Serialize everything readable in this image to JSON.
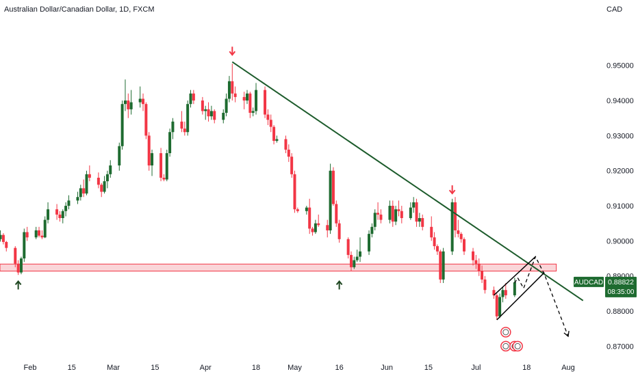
{
  "header": {
    "title": "Australian Dollar/Canadian Dollar, 1D, FXCM",
    "currency": "CAD"
  },
  "price_badge": {
    "symbol": "AUDCAD",
    "price": "0.88822",
    "countdown": "08:35:00"
  },
  "colors": {
    "up": "#1e6b30",
    "down": "#f23645",
    "trendline": "#1c5b2b",
    "zone_fill": "#f8c7cb",
    "zone_stroke": "#f23645",
    "badge": "#1e6b30",
    "axis_text": "#131722"
  },
  "chart_data": {
    "type": "candlestick",
    "title": "Australian Dollar/Canadian Dollar, 1D, FXCM",
    "ylabel": "CAD",
    "ylim": [
      0.8654,
      0.9628
    ],
    "yticks": [
      0.87,
      0.88,
      0.89,
      0.9,
      0.91,
      0.92,
      0.93,
      0.94,
      0.95
    ],
    "ytick_labels": [
      "0.87000",
      "0.88000",
      "0.89000",
      "0.90000",
      "0.91000",
      "0.92000",
      "0.93000",
      "0.94000",
      "0.95000"
    ],
    "xticks": [
      {
        "label": "Feb",
        "date": "Feb 1"
      },
      {
        "label": "15",
        "date": "Feb 15"
      },
      {
        "label": "Mar",
        "date": "Mar 1"
      },
      {
        "label": "15",
        "date": "Mar 15"
      },
      {
        "label": "Apr",
        "date": "Apr 1"
      },
      {
        "label": "18",
        "date": "Apr 18"
      },
      {
        "label": "May",
        "date": "May 1"
      },
      {
        "label": "16",
        "date": "May 16"
      },
      {
        "label": "Jun",
        "date": "Jun 1"
      },
      {
        "label": "15",
        "date": "Jun 15"
      },
      {
        "label": "Jul",
        "date": "Jul 1"
      },
      {
        "label": "18",
        "date": "Jul 18"
      },
      {
        "label": "Aug",
        "date": "Aug 1"
      }
    ],
    "candles": [
      {
        "d": "Jan 20",
        "o": 0.9013,
        "h": 0.9035,
        "l": 0.9,
        "c": 0.901
      },
      {
        "d": "Jan 21",
        "o": 0.901,
        "h": 0.902,
        "l": 0.8995,
        "c": 0.9005
      },
      {
        "d": "Jan 22",
        "o": 0.9005,
        "h": 0.903,
        "l": 0.8998,
        "c": 0.9017
      },
      {
        "d": "Jan 23",
        "o": 0.9017,
        "h": 0.9022,
        "l": 0.899,
        "c": 0.8997
      },
      {
        "d": "Jan 24",
        "o": 0.8997,
        "h": 0.9,
        "l": 0.897,
        "c": 0.898
      },
      {
        "d": "Jan 27",
        "o": 0.898,
        "h": 0.8985,
        "l": 0.8925,
        "c": 0.8935
      },
      {
        "d": "Jan 28",
        "o": 0.8935,
        "h": 0.8945,
        "l": 0.8903,
        "c": 0.891
      },
      {
        "d": "Jan 29",
        "o": 0.891,
        "h": 0.8955,
        "l": 0.8905,
        "c": 0.895
      },
      {
        "d": "Jan 30",
        "o": 0.895,
        "h": 0.9035,
        "l": 0.894,
        "c": 0.9025
      },
      {
        "d": "Jan 31",
        "o": 0.9025,
        "h": 0.904,
        "l": 0.9,
        "c": 0.901
      },
      {
        "d": "Feb 3",
        "o": 0.901,
        "h": 0.904,
        "l": 0.9005,
        "c": 0.903
      },
      {
        "d": "Feb 4",
        "o": 0.903,
        "h": 0.904,
        "l": 0.901,
        "c": 0.9015
      },
      {
        "d": "Feb 5",
        "o": 0.9015,
        "h": 0.903,
        "l": 0.9005,
        "c": 0.901
      },
      {
        "d": "Feb 6",
        "o": 0.901,
        "h": 0.907,
        "l": 0.9008,
        "c": 0.906
      },
      {
        "d": "Feb 7",
        "o": 0.906,
        "h": 0.911,
        "l": 0.905,
        "c": 0.909
      },
      {
        "d": "Feb 10",
        "o": 0.909,
        "h": 0.9105,
        "l": 0.906,
        "c": 0.9075
      },
      {
        "d": "Feb 11",
        "o": 0.9075,
        "h": 0.9085,
        "l": 0.9055,
        "c": 0.9065
      },
      {
        "d": "Feb 12",
        "o": 0.9065,
        "h": 0.909,
        "l": 0.905,
        "c": 0.9085
      },
      {
        "d": "Feb 13",
        "o": 0.9085,
        "h": 0.911,
        "l": 0.907,
        "c": 0.91
      },
      {
        "d": "Feb 14",
        "o": 0.91,
        "h": 0.913,
        "l": 0.909,
        "c": 0.9115
      },
      {
        "d": "Feb 17",
        "o": 0.9115,
        "h": 0.914,
        "l": 0.9105,
        "c": 0.9125
      },
      {
        "d": "Feb 18",
        "o": 0.9125,
        "h": 0.916,
        "l": 0.9115,
        "c": 0.915
      },
      {
        "d": "Feb 19",
        "o": 0.915,
        "h": 0.9175,
        "l": 0.9125,
        "c": 0.9135
      },
      {
        "d": "Feb 20",
        "o": 0.9135,
        "h": 0.92,
        "l": 0.913,
        "c": 0.919
      },
      {
        "d": "Feb 21",
        "o": 0.919,
        "h": 0.9215,
        "l": 0.917,
        "c": 0.918
      },
      {
        "d": "Feb 24",
        "o": 0.918,
        "h": 0.9195,
        "l": 0.915,
        "c": 0.916
      },
      {
        "d": "Feb 25",
        "o": 0.916,
        "h": 0.9165,
        "l": 0.9125,
        "c": 0.914
      },
      {
        "d": "Feb 26",
        "o": 0.914,
        "h": 0.9185,
        "l": 0.9135,
        "c": 0.917
      },
      {
        "d": "Feb 27",
        "o": 0.917,
        "h": 0.92,
        "l": 0.915,
        "c": 0.919
      },
      {
        "d": "Feb 28",
        "o": 0.919,
        "h": 0.923,
        "l": 0.918,
        "c": 0.9215
      },
      {
        "d": "Mar 3",
        "o": 0.9215,
        "h": 0.928,
        "l": 0.92,
        "c": 0.927
      },
      {
        "d": "Mar 4",
        "o": 0.927,
        "h": 0.94,
        "l": 0.926,
        "c": 0.939
      },
      {
        "d": "Mar 5",
        "o": 0.939,
        "h": 0.946,
        "l": 0.937,
        "c": 0.94
      },
      {
        "d": "Mar 6",
        "o": 0.94,
        "h": 0.942,
        "l": 0.935,
        "c": 0.9375
      },
      {
        "d": "Mar 7",
        "o": 0.9375,
        "h": 0.943,
        "l": 0.936,
        "c": 0.9395
      },
      {
        "d": "Mar 10",
        "o": 0.9395,
        "h": 0.944,
        "l": 0.938,
        "c": 0.9405
      },
      {
        "d": "Mar 11",
        "o": 0.9405,
        "h": 0.942,
        "l": 0.937,
        "c": 0.939
      },
      {
        "d": "Mar 12",
        "o": 0.939,
        "h": 0.9395,
        "l": 0.929,
        "c": 0.93
      },
      {
        "d": "Mar 13",
        "o": 0.93,
        "h": 0.931,
        "l": 0.92,
        "c": 0.9215
      },
      {
        "d": "Mar 14",
        "o": 0.9215,
        "h": 0.926,
        "l": 0.9185,
        "c": 0.925
      },
      {
        "d": "Mar 17",
        "o": 0.925,
        "h": 0.9265,
        "l": 0.917,
        "c": 0.918
      },
      {
        "d": "Mar 18",
        "o": 0.918,
        "h": 0.919,
        "l": 0.917,
        "c": 0.9175
      },
      {
        "d": "Mar 19",
        "o": 0.9175,
        "h": 0.926,
        "l": 0.917,
        "c": 0.925
      },
      {
        "d": "Mar 20",
        "o": 0.925,
        "h": 0.932,
        "l": 0.924,
        "c": 0.931
      },
      {
        "d": "Mar 21",
        "o": 0.931,
        "h": 0.935,
        "l": 0.929,
        "c": 0.934
      },
      {
        "d": "Mar 24",
        "o": 0.934,
        "h": 0.937,
        "l": 0.931,
        "c": 0.932
      },
      {
        "d": "Mar 25",
        "o": 0.932,
        "h": 0.934,
        "l": 0.93,
        "c": 0.931
      },
      {
        "d": "Mar 26",
        "o": 0.931,
        "h": 0.94,
        "l": 0.93,
        "c": 0.939
      },
      {
        "d": "Mar 27",
        "o": 0.939,
        "h": 0.943,
        "l": 0.938,
        "c": 0.942
      },
      {
        "d": "Mar 28",
        "o": 0.942,
        "h": 0.943,
        "l": 0.939,
        "c": 0.94
      },
      {
        "d": "Mar 31",
        "o": 0.94,
        "h": 0.941,
        "l": 0.936,
        "c": 0.937
      },
      {
        "d": "Apr 1",
        "o": 0.937,
        "h": 0.9385,
        "l": 0.9345,
        "c": 0.9375
      },
      {
        "d": "Apr 2",
        "o": 0.9375,
        "h": 0.9395,
        "l": 0.934,
        "c": 0.9355
      },
      {
        "d": "Apr 3",
        "o": 0.9355,
        "h": 0.9385,
        "l": 0.9345,
        "c": 0.937
      },
      {
        "d": "Apr 4",
        "o": 0.937,
        "h": 0.9375,
        "l": 0.9335,
        "c": 0.9345
      },
      {
        "d": "Apr 7",
        "o": 0.9345,
        "h": 0.9375,
        "l": 0.9335,
        "c": 0.9365
      },
      {
        "d": "Apr 8",
        "o": 0.9365,
        "h": 0.942,
        "l": 0.9355,
        "c": 0.9405
      },
      {
        "d": "Apr 9",
        "o": 0.9405,
        "h": 0.947,
        "l": 0.9395,
        "c": 0.9455
      },
      {
        "d": "Apr 10",
        "o": 0.9455,
        "h": 0.9505,
        "l": 0.94,
        "c": 0.942
      },
      {
        "d": "Apr 11",
        "o": 0.942,
        "h": 0.944,
        "l": 0.9395,
        "c": 0.941
      },
      {
        "d": "Apr 14",
        "o": 0.941,
        "h": 0.9425,
        "l": 0.9375,
        "c": 0.94
      },
      {
        "d": "Apr 15",
        "o": 0.94,
        "h": 0.943,
        "l": 0.939,
        "c": 0.942
      },
      {
        "d": "Apr 16",
        "o": 0.942,
        "h": 0.9425,
        "l": 0.935,
        "c": 0.9365
      },
      {
        "d": "Apr 17",
        "o": 0.9365,
        "h": 0.938,
        "l": 0.9355,
        "c": 0.937
      },
      {
        "d": "Apr 18",
        "o": 0.937,
        "h": 0.945,
        "l": 0.936,
        "c": 0.943
      },
      {
        "d": "Apr 21",
        "o": 0.943,
        "h": 0.944,
        "l": 0.935,
        "c": 0.936
      },
      {
        "d": "Apr 22",
        "o": 0.936,
        "h": 0.9375,
        "l": 0.933,
        "c": 0.9345
      },
      {
        "d": "Apr 23",
        "o": 0.9345,
        "h": 0.936,
        "l": 0.931,
        "c": 0.9325
      },
      {
        "d": "Apr 24",
        "o": 0.9325,
        "h": 0.933,
        "l": 0.9275,
        "c": 0.9285
      },
      {
        "d": "Apr 25",
        "o": 0.9285,
        "h": 0.93,
        "l": 0.928,
        "c": 0.929
      },
      {
        "d": "Apr 28",
        "o": 0.929,
        "h": 0.93,
        "l": 0.925,
        "c": 0.926
      },
      {
        "d": "Apr 29",
        "o": 0.926,
        "h": 0.9275,
        "l": 0.9225,
        "c": 0.924
      },
      {
        "d": "Apr 30",
        "o": 0.924,
        "h": 0.925,
        "l": 0.918,
        "c": 0.919
      },
      {
        "d": "May 1",
        "o": 0.919,
        "h": 0.92,
        "l": 0.908,
        "c": 0.909
      },
      {
        "d": "May 2",
        "o": 0.909,
        "h": 0.9095,
        "l": 0.908,
        "c": 0.9085
      },
      {
        "d": "May 5",
        "o": 0.9085,
        "h": 0.91,
        "l": 0.9075,
        "c": 0.9095
      },
      {
        "d": "May 6",
        "o": 0.9095,
        "h": 0.912,
        "l": 0.902,
        "c": 0.9035
      },
      {
        "d": "May 7",
        "o": 0.9035,
        "h": 0.904,
        "l": 0.9015,
        "c": 0.9025
      },
      {
        "d": "May 8",
        "o": 0.9025,
        "h": 0.906,
        "l": 0.902,
        "c": 0.905
      },
      {
        "d": "May 9",
        "o": 0.905,
        "h": 0.9075,
        "l": 0.904,
        "c": 0.9045
      },
      {
        "d": "May 12",
        "o": 0.9045,
        "h": 0.906,
        "l": 0.901,
        "c": 0.903
      },
      {
        "d": "May 13",
        "o": 0.903,
        "h": 0.922,
        "l": 0.902,
        "c": 0.92
      },
      {
        "d": "May 14",
        "o": 0.92,
        "h": 0.921,
        "l": 0.91,
        "c": 0.9105
      },
      {
        "d": "May 15",
        "o": 0.9105,
        "h": 0.9115,
        "l": 0.904,
        "c": 0.905
      },
      {
        "d": "May 16",
        "o": 0.905,
        "h": 0.906,
        "l": 0.8995,
        "c": 0.9005
      },
      {
        "d": "May 19",
        "o": 0.9005,
        "h": 0.901,
        "l": 0.895,
        "c": 0.896
      },
      {
        "d": "May 20",
        "o": 0.896,
        "h": 0.897,
        "l": 0.8915,
        "c": 0.8925
      },
      {
        "d": "May 21",
        "o": 0.8925,
        "h": 0.8955,
        "l": 0.892,
        "c": 0.8945
      },
      {
        "d": "May 22",
        "o": 0.8945,
        "h": 0.8975,
        "l": 0.894,
        "c": 0.8955
      },
      {
        "d": "May 23",
        "o": 0.8955,
        "h": 0.901,
        "l": 0.894,
        "c": 0.897
      },
      {
        "d": "May 26",
        "o": 0.897,
        "h": 0.903,
        "l": 0.896,
        "c": 0.902
      },
      {
        "d": "May 27",
        "o": 0.902,
        "h": 0.905,
        "l": 0.901,
        "c": 0.904
      },
      {
        "d": "May 28",
        "o": 0.904,
        "h": 0.909,
        "l": 0.903,
        "c": 0.908
      },
      {
        "d": "May 29",
        "o": 0.908,
        "h": 0.911,
        "l": 0.906,
        "c": 0.9075
      },
      {
        "d": "May 30",
        "o": 0.9075,
        "h": 0.909,
        "l": 0.905,
        "c": 0.906
      },
      {
        "d": "Jun 2",
        "o": 0.906,
        "h": 0.9115,
        "l": 0.905,
        "c": 0.91
      },
      {
        "d": "Jun 3",
        "o": 0.91,
        "h": 0.9115,
        "l": 0.904,
        "c": 0.9055
      },
      {
        "d": "Jun 4",
        "o": 0.9055,
        "h": 0.91,
        "l": 0.9045,
        "c": 0.909
      },
      {
        "d": "Jun 5",
        "o": 0.909,
        "h": 0.9115,
        "l": 0.907,
        "c": 0.9085
      },
      {
        "d": "Jun 6",
        "o": 0.9085,
        "h": 0.91,
        "l": 0.905,
        "c": 0.9065
      },
      {
        "d": "Jun 9",
        "o": 0.9065,
        "h": 0.911,
        "l": 0.906,
        "c": 0.9095
      },
      {
        "d": "Jun 10",
        "o": 0.9095,
        "h": 0.9125,
        "l": 0.908,
        "c": 0.911
      },
      {
        "d": "Jun 11",
        "o": 0.911,
        "h": 0.912,
        "l": 0.904,
        "c": 0.9055
      },
      {
        "d": "Jun 12",
        "o": 0.9055,
        "h": 0.908,
        "l": 0.904,
        "c": 0.9065
      },
      {
        "d": "Jun 13",
        "o": 0.9065,
        "h": 0.9075,
        "l": 0.903,
        "c": 0.904
      },
      {
        "d": "Jun 16",
        "o": 0.904,
        "h": 0.907,
        "l": 0.9,
        "c": 0.901
      },
      {
        "d": "Jun 17",
        "o": 0.901,
        "h": 0.9025,
        "l": 0.8975,
        "c": 0.8985
      },
      {
        "d": "Jun 18",
        "o": 0.8985,
        "h": 0.899,
        "l": 0.896,
        "c": 0.897
      },
      {
        "d": "Jun 19",
        "o": 0.897,
        "h": 0.8975,
        "l": 0.888,
        "c": 0.889
      },
      {
        "d": "Jun 20",
        "o": 0.889,
        "h": 0.898,
        "l": 0.888,
        "c": 0.897
      },
      {
        "d": "Jun 23",
        "o": 0.897,
        "h": 0.912,
        "l": 0.896,
        "c": 0.911
      },
      {
        "d": "Jun 24",
        "o": 0.911,
        "h": 0.9125,
        "l": 0.901,
        "c": 0.903
      },
      {
        "d": "Jun 25",
        "o": 0.903,
        "h": 0.906,
        "l": 0.901,
        "c": 0.902
      },
      {
        "d": "Jun 26",
        "o": 0.902,
        "h": 0.9025,
        "l": 0.8995,
        "c": 0.9005
      },
      {
        "d": "Jun 27",
        "o": 0.9005,
        "h": 0.901,
        "l": 0.896,
        "c": 0.897
      },
      {
        "d": "Jun 30",
        "o": 0.897,
        "h": 0.898,
        "l": 0.893,
        "c": 0.8945
      },
      {
        "d": "Jul 1",
        "o": 0.8945,
        "h": 0.896,
        "l": 0.892,
        "c": 0.8935
      },
      {
        "d": "Jul 2",
        "o": 0.8935,
        "h": 0.895,
        "l": 0.89,
        "c": 0.8915
      },
      {
        "d": "Jul 3",
        "o": 0.8915,
        "h": 0.893,
        "l": 0.888,
        "c": 0.889
      },
      {
        "d": "Jul 4",
        "o": 0.889,
        "h": 0.89,
        "l": 0.885,
        "c": 0.886
      },
      {
        "d": "Jul 7",
        "o": 0.886,
        "h": 0.887,
        "l": 0.8835,
        "c": 0.8845
      },
      {
        "d": "Jul 8",
        "o": 0.8845,
        "h": 0.885,
        "l": 0.8775,
        "c": 0.8785
      },
      {
        "d": "Jul 9",
        "o": 0.8785,
        "h": 0.885,
        "l": 0.878,
        "c": 0.884
      },
      {
        "d": "Jul 10",
        "o": 0.884,
        "h": 0.887,
        "l": 0.8825,
        "c": 0.886
      },
      {
        "d": "Jul 11",
        "o": 0.886,
        "h": 0.888,
        "l": 0.8835,
        "c": 0.8845
      },
      {
        "d": "Jul 14",
        "o": 0.8845,
        "h": 0.8895,
        "l": 0.884,
        "c": 0.8882
      }
    ],
    "last_price": 0.88822,
    "support_zone": {
      "top": 0.8934,
      "bottom": 0.8914,
      "start": "Jan 24",
      "end": "Jul 28"
    },
    "trendline": {
      "start": {
        "d": "Apr 10",
        "v": 0.951
      },
      "end": {
        "d": "Aug 6",
        "v": 0.883
      }
    },
    "channel": {
      "lower": [
        {
          "d": "Jul 8",
          "v": 0.8775
        },
        {
          "d": "Jul 24",
          "v": 0.891
        }
      ],
      "upper": [
        {
          "d": "Jul 7",
          "v": 0.8845
        },
        {
          "d": "Jul 21",
          "v": 0.8955
        }
      ]
    },
    "projection": [
      {
        "d": "Jul 14",
        "v": 0.888
      },
      {
        "d": "Jul 15",
        "v": 0.8895
      },
      {
        "d": "Jul 17",
        "v": 0.8865
      },
      {
        "d": "Jul 21",
        "v": 0.8955
      },
      {
        "d": "Jul 24",
        "v": 0.8905
      },
      {
        "d": "Aug 1",
        "v": 0.8728
      }
    ],
    "markers": [
      {
        "d": "Jan 28",
        "v": 0.8885,
        "type": "up-arrow"
      },
      {
        "d": "May 16",
        "v": 0.8885,
        "type": "up-arrow"
      },
      {
        "d": "Apr 10",
        "v": 0.953,
        "type": "down-arrow"
      },
      {
        "d": "Jun 23",
        "v": 0.9135,
        "type": "down-arrow"
      }
    ],
    "events": [
      {
        "d": "Jul 11",
        "v": 0.874
      },
      {
        "d": "Jul 11",
        "v": 0.87
      },
      {
        "d": "Jul 14",
        "v": 0.87
      },
      {
        "d": "Jul 15",
        "v": 0.87
      }
    ],
    "grid": false
  }
}
